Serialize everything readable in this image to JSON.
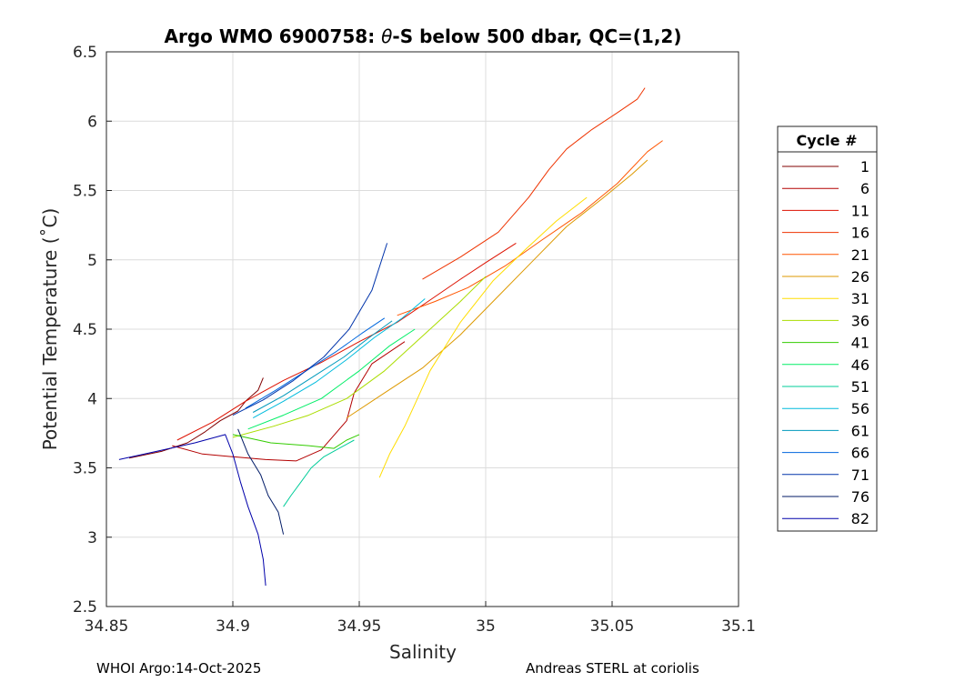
{
  "chart_data": {
    "type": "line",
    "title": "Argo WMO 6900758: θ-S below 500 dbar,  QC=(1,2)",
    "title_parts": [
      "Argo WMO 6900758: ",
      "θ",
      "-S below 500 dbar,  QC=(1,2)"
    ],
    "xlabel": "Salinity",
    "ylabel": "Potential Temperature (˚C)",
    "xlim": [
      34.85,
      35.1
    ],
    "ylim": [
      2.5,
      6.5
    ],
    "xticks": [
      34.85,
      34.9,
      34.95,
      35,
      35.05,
      35.1
    ],
    "xtick_labels": [
      "34.85",
      "34.9",
      "34.95",
      "35",
      "35.05",
      "35.1"
    ],
    "yticks": [
      2.5,
      3,
      3.5,
      4,
      4.5,
      5,
      5.5,
      6,
      6.5
    ],
    "ytick_labels": [
      "2.5",
      "3",
      "3.5",
      "4",
      "4.5",
      "5",
      "5.5",
      "6",
      "6.5"
    ],
    "grid": true,
    "legend_title": "Cycle #",
    "legend_position": "right",
    "series": [
      {
        "name": "1",
        "color": "#800000",
        "x": [
          34.859,
          34.872,
          34.882,
          34.889,
          34.895,
          34.902,
          34.905,
          34.91,
          34.912
        ],
        "y": [
          3.57,
          3.62,
          3.68,
          3.76,
          3.84,
          3.91,
          3.98,
          4.06,
          4.15
        ]
      },
      {
        "name": "6",
        "color": "#b30000",
        "x": [
          34.876,
          34.888,
          34.9,
          34.913,
          34.925,
          34.935,
          34.945,
          34.948,
          34.955,
          34.968
        ],
        "y": [
          3.66,
          3.6,
          3.58,
          3.56,
          3.55,
          3.63,
          3.84,
          4.04,
          4.25,
          4.41
        ]
      },
      {
        "name": "11",
        "color": "#dd1100",
        "x": [
          34.878,
          34.892,
          34.905,
          34.92,
          34.935,
          34.95,
          34.965,
          34.978,
          34.99,
          35.0,
          35.012
        ],
        "y": [
          3.7,
          3.83,
          3.98,
          4.13,
          4.26,
          4.41,
          4.55,
          4.71,
          4.86,
          4.98,
          5.12
        ]
      },
      {
        "name": "16",
        "color": "#ee3300",
        "x": [
          34.975,
          34.99,
          35.005,
          35.017,
          35.025,
          35.032,
          35.042,
          35.052,
          35.06,
          35.063
        ],
        "y": [
          4.86,
          5.02,
          5.2,
          5.45,
          5.65,
          5.8,
          5.94,
          6.06,
          6.16,
          6.24
        ]
      },
      {
        "name": "21",
        "color": "#ff5500",
        "x": [
          34.965,
          34.98,
          34.993,
          35.008,
          35.022,
          35.038,
          35.052,
          35.064,
          35.07
        ],
        "y": [
          4.6,
          4.7,
          4.8,
          4.96,
          5.14,
          5.34,
          5.55,
          5.78,
          5.86
        ]
      },
      {
        "name": "26",
        "color": "#dd9900",
        "x": [
          34.945,
          34.96,
          34.975,
          34.99,
          35.004,
          35.018,
          35.032,
          35.046,
          35.058,
          35.064
        ],
        "y": [
          3.86,
          4.04,
          4.22,
          4.46,
          4.72,
          4.98,
          5.24,
          5.44,
          5.62,
          5.72
        ]
      },
      {
        "name": "31",
        "color": "#ffdd00",
        "x": [
          34.958,
          34.962,
          34.968,
          34.972,
          34.978,
          34.99,
          35.003,
          35.016,
          35.028,
          35.04
        ],
        "y": [
          3.43,
          3.6,
          3.8,
          3.96,
          4.2,
          4.55,
          4.85,
          5.08,
          5.28,
          5.45
        ]
      },
      {
        "name": "36",
        "color": "#aadd00",
        "x": [
          34.9,
          34.916,
          34.93,
          34.945,
          34.96,
          34.975,
          34.99,
          35.0
        ],
        "y": [
          3.72,
          3.8,
          3.88,
          4.0,
          4.2,
          4.45,
          4.7,
          4.88
        ]
      },
      {
        "name": "41",
        "color": "#33cc00",
        "x": [
          34.9,
          34.915,
          34.93,
          34.94,
          34.945,
          34.95
        ],
        "y": [
          3.74,
          3.68,
          3.66,
          3.64,
          3.7,
          3.74
        ]
      },
      {
        "name": "46",
        "color": "#00ee66",
        "x": [
          34.906,
          34.92,
          34.935,
          34.95,
          34.962,
          34.972
        ],
        "y": [
          3.78,
          3.88,
          4.0,
          4.2,
          4.38,
          4.5
        ]
      },
      {
        "name": "51",
        "color": "#00cc99",
        "x": [
          34.92,
          34.923,
          34.927,
          34.931,
          34.936,
          34.942,
          34.948
        ],
        "y": [
          3.22,
          3.3,
          3.4,
          3.5,
          3.58,
          3.64,
          3.7
        ]
      },
      {
        "name": "56",
        "color": "#00bbdd",
        "x": [
          34.908,
          34.92,
          34.933,
          34.945,
          34.956,
          34.967,
          34.976
        ],
        "y": [
          3.86,
          3.98,
          4.12,
          4.28,
          4.44,
          4.58,
          4.72
        ]
      },
      {
        "name": "61",
        "color": "#0099bb",
        "x": [
          34.908,
          34.92,
          34.932,
          34.944,
          34.954,
          34.963
        ],
        "y": [
          3.9,
          4.02,
          4.16,
          4.3,
          4.44,
          4.56
        ]
      },
      {
        "name": "66",
        "color": "#0066dd",
        "x": [
          34.905,
          34.917,
          34.929,
          34.941,
          34.951,
          34.96
        ],
        "y": [
          3.93,
          4.06,
          4.2,
          4.34,
          4.47,
          4.58
        ]
      },
      {
        "name": "71",
        "color": "#0033aa",
        "x": [
          34.9,
          34.912,
          34.924,
          34.936,
          34.946,
          34.955,
          34.961
        ],
        "y": [
          3.88,
          3.99,
          4.13,
          4.3,
          4.5,
          4.78,
          5.12
        ]
      },
      {
        "name": "76",
        "color": "#001a66",
        "x": [
          34.902,
          34.906,
          34.911,
          34.914,
          34.918,
          34.92
        ],
        "y": [
          3.78,
          3.6,
          3.45,
          3.3,
          3.18,
          3.02
        ]
      },
      {
        "name": "82",
        "color": "#0000aa",
        "x": [
          34.855,
          34.87,
          34.885,
          34.897,
          34.9,
          34.903,
          34.906,
          34.91,
          34.912,
          34.913
        ],
        "y": [
          3.56,
          3.62,
          3.68,
          3.74,
          3.6,
          3.4,
          3.22,
          3.02,
          2.84,
          2.65
        ]
      }
    ]
  },
  "footer": {
    "left": "WHOI Argo:14-Oct-2025",
    "right": "Andreas STERL at coriolis"
  }
}
